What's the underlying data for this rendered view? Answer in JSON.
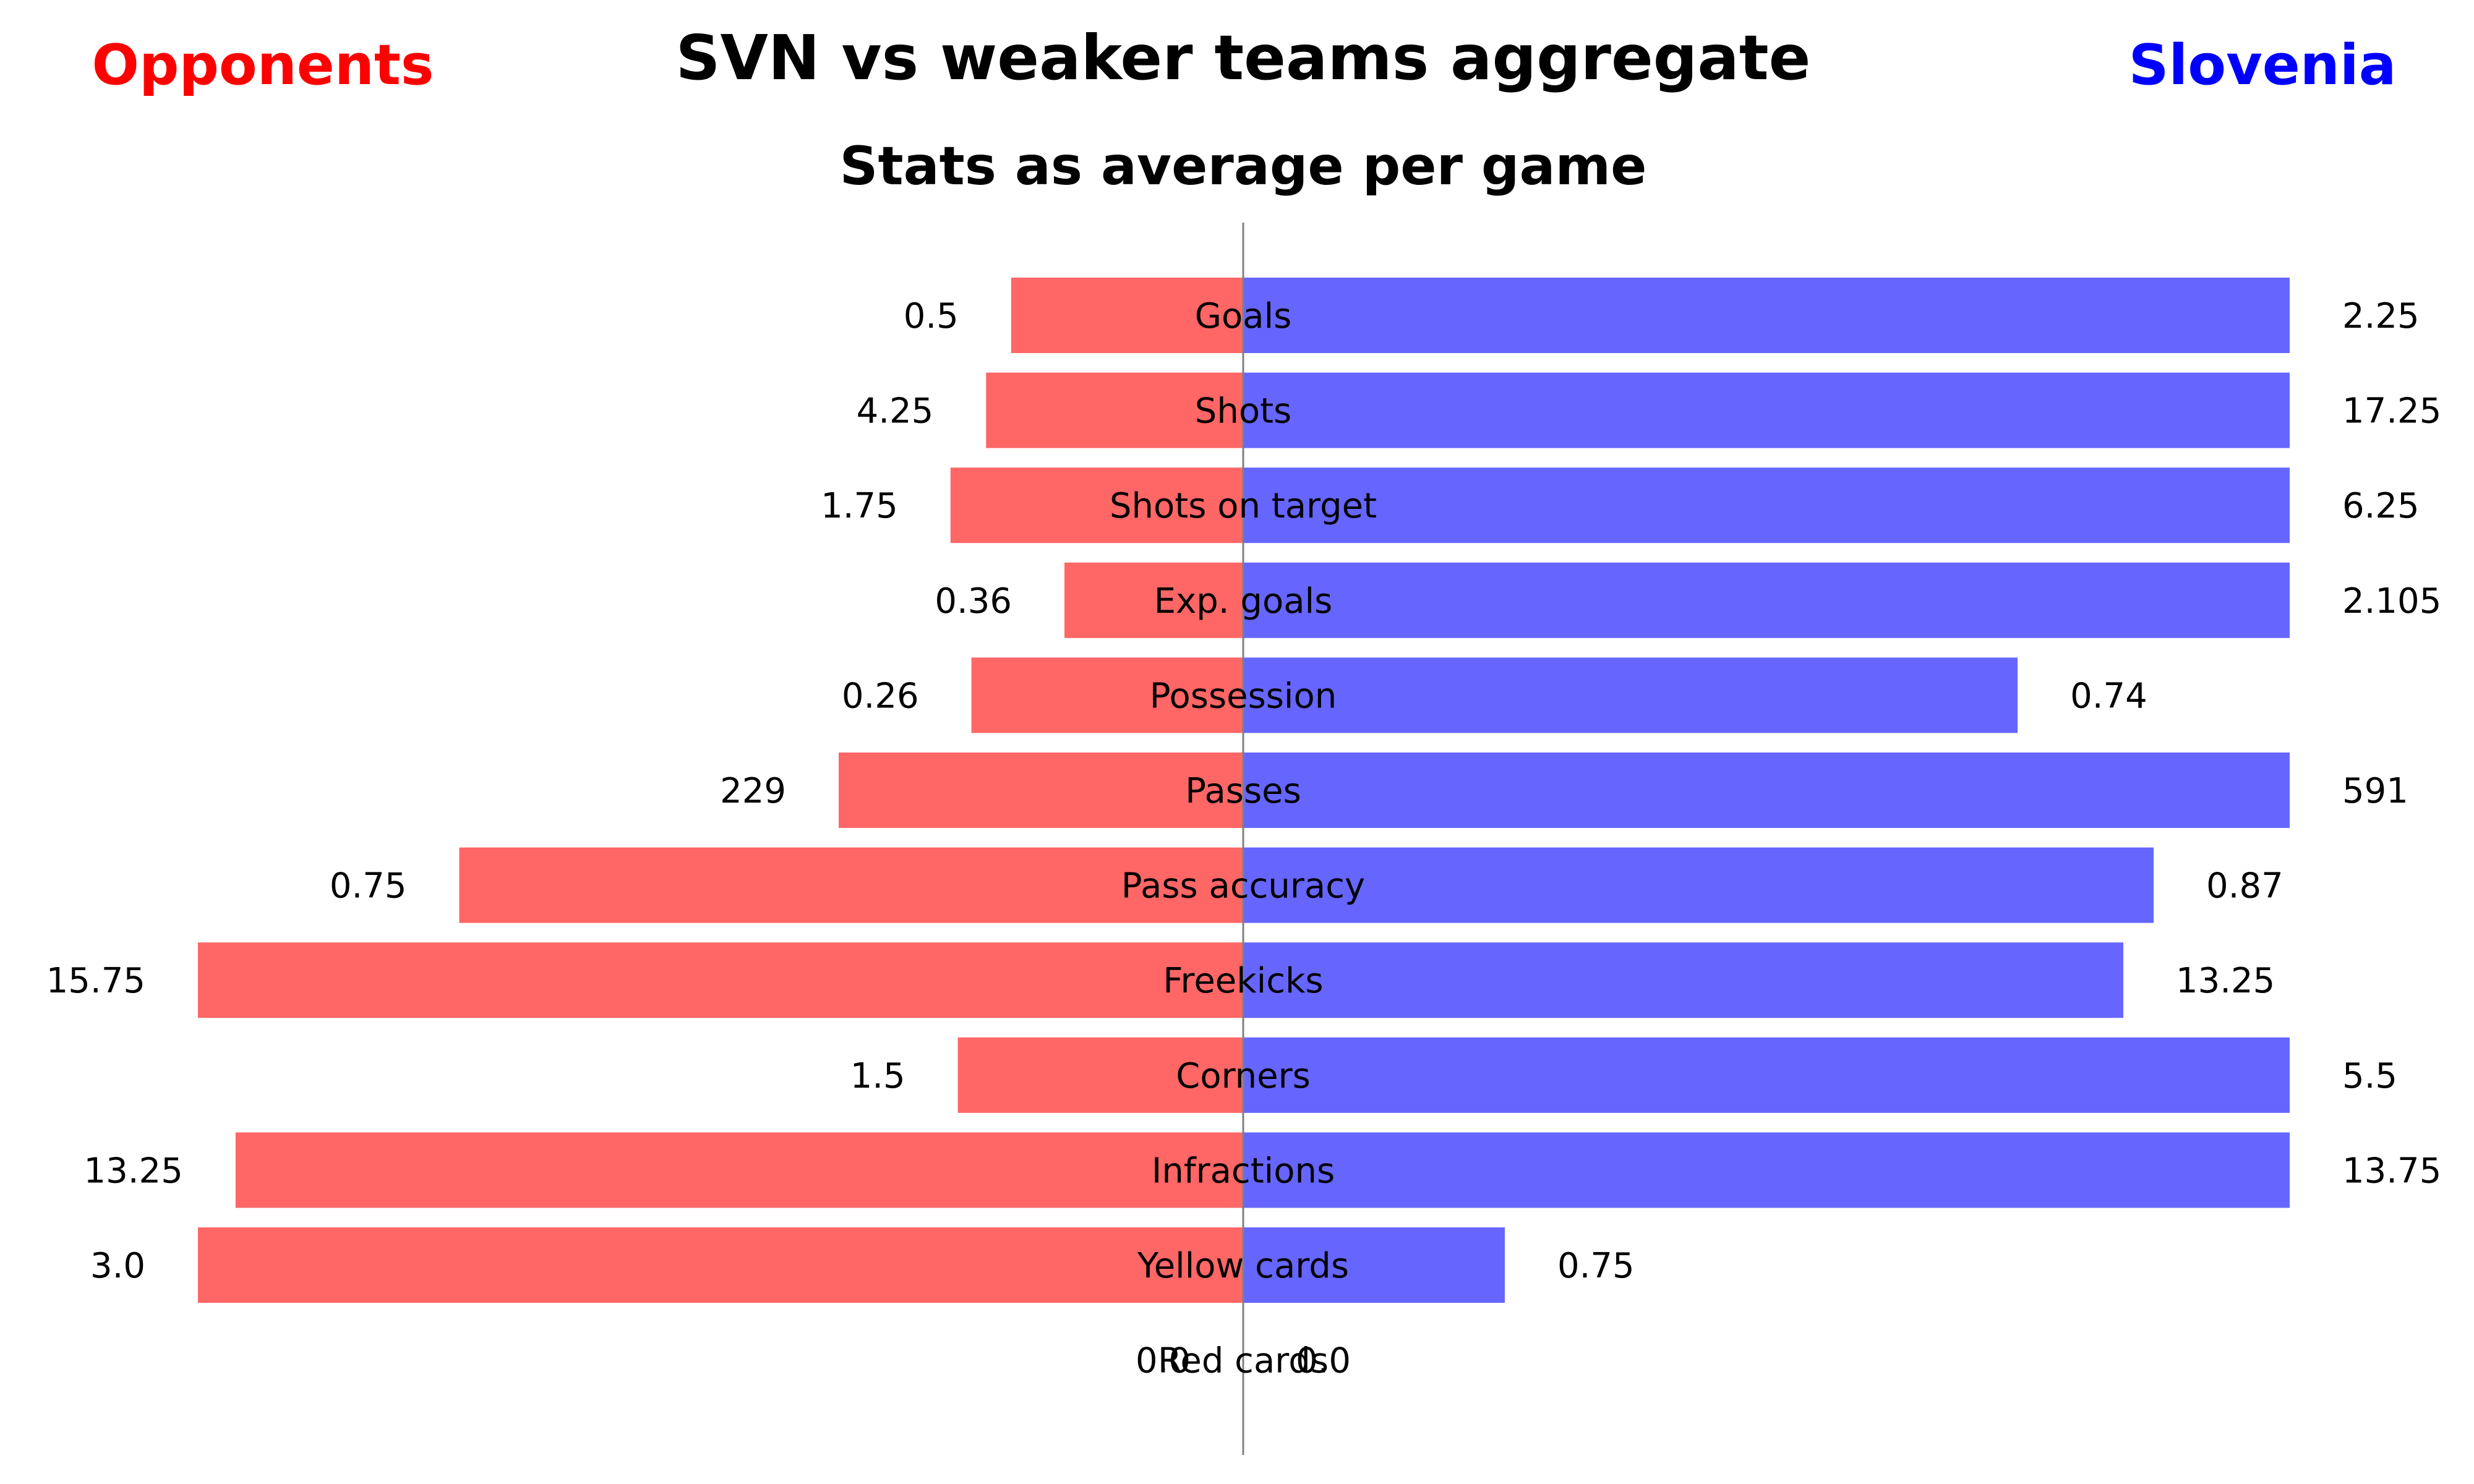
{
  "colors": {
    "opponents": "#ff6666",
    "slovenia": "#6666ff",
    "opponents_title": "#ff0000",
    "slovenia_title": "#0000ff",
    "axis": "#808080"
  },
  "chart_data": {
    "type": "bar",
    "orientation": "horizontal-diverging",
    "title": "SVN vs weaker teams aggregate",
    "subtitle": "Stats as average per game",
    "left_label": "Opponents",
    "right_label": "Slovenia",
    "normalization": "each row scaled to the larger of the two values; Passes scaled to its larger value",
    "categories": [
      "Goals",
      "Shots",
      "Shots on target",
      "Exp. goals",
      "Possession",
      "Passes",
      "Pass accuracy",
      "Freekicks",
      "Corners",
      "Infractions",
      "Yellow cards",
      "Red cards"
    ],
    "series": [
      {
        "name": "Opponents",
        "values": [
          0.5,
          4.25,
          1.75,
          0.36,
          0.26,
          229,
          0.75,
          15.75,
          1.5,
          13.25,
          3.0,
          0.0
        ],
        "labels": [
          "0.5",
          "4.25",
          "1.75",
          "0.36",
          "0.26",
          "229",
          "0.75",
          "15.75",
          "1.5",
          "13.25",
          "3.0",
          "0.0"
        ],
        "scaled": [
          0.222,
          0.246,
          0.28,
          0.171,
          0.26,
          0.387,
          0.75,
          1.0,
          0.273,
          0.964,
          1.0,
          0.0
        ]
      },
      {
        "name": "Slovenia",
        "values": [
          2.25,
          17.25,
          6.25,
          2.105,
          0.74,
          591,
          0.87,
          13.25,
          5.5,
          13.75,
          0.75,
          0.0
        ],
        "labels": [
          "2.25",
          "17.25",
          "6.25",
          "2.105",
          "0.74",
          "591",
          "0.87",
          "13.25",
          "5.5",
          "13.75",
          "0.75",
          "0.0"
        ],
        "scaled": [
          1.0,
          1.0,
          1.0,
          1.0,
          0.74,
          1.0,
          0.87,
          0.841,
          1.0,
          1.0,
          0.25,
          0.0
        ]
      }
    ],
    "grid": false,
    "legend": "none"
  }
}
